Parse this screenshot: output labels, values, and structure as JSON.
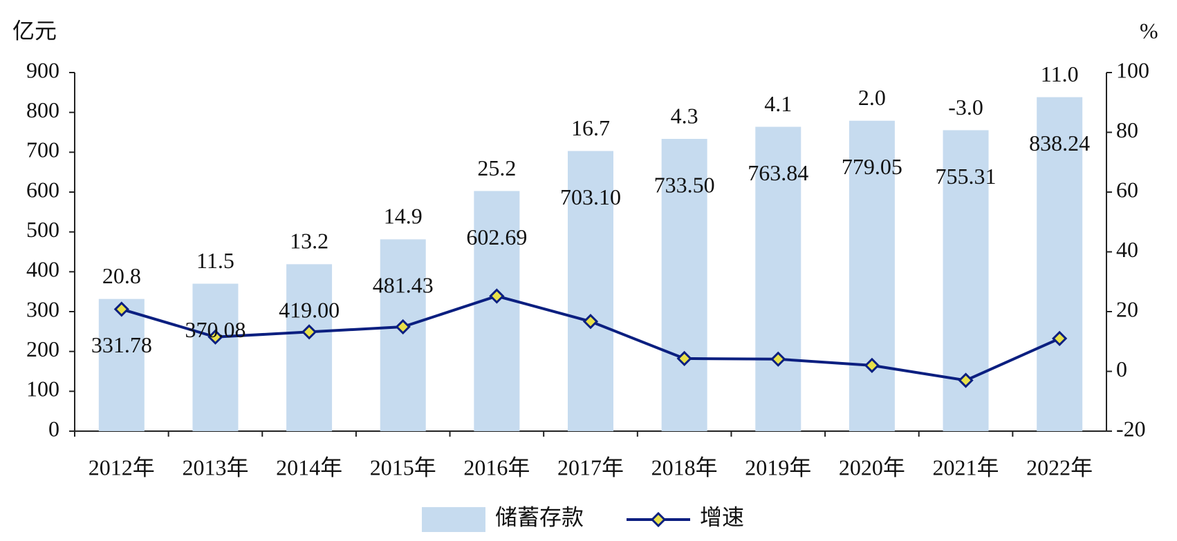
{
  "chart_data": {
    "type": "combo",
    "y_label": "亿元",
    "y2_label": "%",
    "categories": [
      "2012年",
      "2013年",
      "2014年",
      "2015年",
      "2016年",
      "2017年",
      "2018年",
      "2019年",
      "2020年",
      "2021年",
      "2022年"
    ],
    "series": [
      {
        "name": "储蓄存款",
        "type": "bar",
        "color": "#c6dbef",
        "values": [
          331.78,
          370.08,
          419.0,
          481.43,
          602.69,
          703.1,
          733.5,
          763.84,
          779.05,
          755.31,
          838.24
        ],
        "value_labels": [
          "331.78",
          "370.08",
          "419.00",
          "481.43",
          "602.69",
          "703.10",
          "733.50",
          "763.84",
          "779.05",
          "755.31",
          "838.24"
        ]
      },
      {
        "name": "增速",
        "type": "line",
        "axis": "y2",
        "color": "#0b1f80",
        "marker_color": "#e8e04a",
        "values": [
          20.8,
          11.5,
          13.2,
          14.9,
          25.2,
          16.7,
          4.3,
          4.1,
          2.0,
          -3.0,
          11.0
        ],
        "value_labels": [
          "20.8",
          "11.5",
          "13.2",
          "14.9",
          "25.2",
          "16.7",
          "4.3",
          "4.1",
          "2.0",
          "-3.0",
          "11.0"
        ]
      }
    ],
    "ylim": [
      0,
      900
    ],
    "yticks": [
      0,
      100,
      200,
      300,
      400,
      500,
      600,
      700,
      800,
      900
    ],
    "y2lim": [
      -20,
      100
    ],
    "y2ticks": [
      -20,
      0,
      20,
      40,
      60,
      80,
      100
    ],
    "grid": false,
    "legend": "bottom"
  }
}
